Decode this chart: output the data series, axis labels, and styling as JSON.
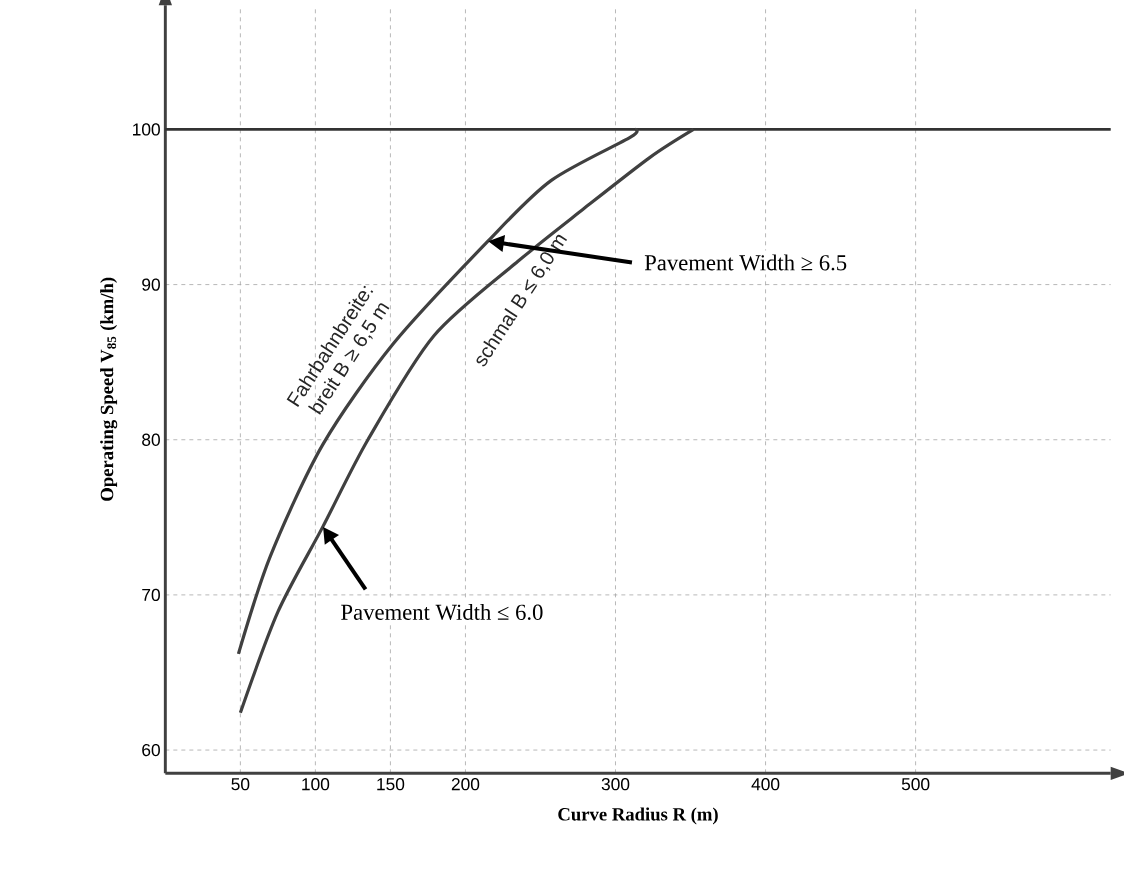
{
  "chart_data": {
    "type": "line",
    "xlabel": "Curve Radius R (m)",
    "ylabel": "Operating Speed V$_{85}$ (km/h)",
    "xlim": [
      0,
      630
    ],
    "ylim": [
      58.5,
      108
    ],
    "xticks": [
      50,
      100,
      150,
      200,
      300,
      400,
      500
    ],
    "yticks": [
      60,
      70,
      80,
      90,
      100
    ],
    "grid": true,
    "series": [
      {
        "name": "breit  B ≥ 6,5 m",
        "color": "#404040",
        "x": [
          48.7,
          70,
          105,
          152,
          215,
          257,
          310,
          313
        ],
        "values": [
          66.2,
          72.5,
          79.7,
          86.2,
          92.8,
          96.7,
          99.5,
          100
        ]
      },
      {
        "name": "schmal  B ≤ 6,0 m",
        "color": "#404040",
        "x": [
          50,
          75,
          105,
          135,
          179,
          235,
          279,
          323,
          352
        ],
        "values": [
          62.4,
          68.9,
          74.4,
          80,
          86.7,
          91.5,
          94.9,
          98.2,
          100
        ]
      }
    ],
    "ref_lines": [
      {
        "axis": "y",
        "value": 100,
        "color": "#333333"
      }
    ],
    "annotations": [
      "Fahrbahnbreite:",
      "Pavement Width ≥ 6.5",
      "Pavement Width ≤ 6.0"
    ]
  }
}
